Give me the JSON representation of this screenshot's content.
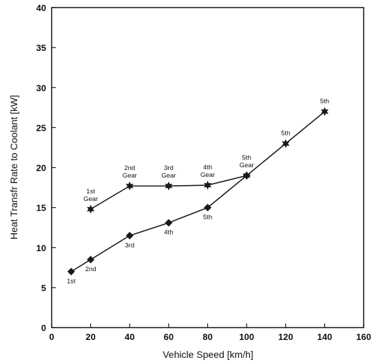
{
  "chart_data": {
    "type": "line",
    "title": "",
    "xlabel": "Vehicle Speed [km/h]",
    "ylabel": "Heat Transfr Rate to Coolant [kW]",
    "xlim": [
      0,
      160
    ],
    "ylim": [
      0,
      40
    ],
    "xticks": [
      "0",
      "20",
      "40",
      "60",
      "80",
      "100",
      "120",
      "140",
      "160"
    ],
    "yticks": [
      "0",
      "5",
      "10",
      "15",
      "20",
      "25",
      "30",
      "35",
      "40"
    ],
    "grid": false,
    "legend": "none",
    "series": [
      {
        "marker": "star",
        "color": "#1a1a1a",
        "points": [
          {
            "x": 20,
            "y": 14.8,
            "label": [
              "1st",
              "Gear"
            ],
            "label_pos": "above"
          },
          {
            "x": 40,
            "y": 17.7,
            "label": [
              "2nd",
              "Gear"
            ],
            "label_pos": "above"
          },
          {
            "x": 60,
            "y": 17.7,
            "label": [
              "3rd",
              "Gear"
            ],
            "label_pos": "above"
          },
          {
            "x": 80,
            "y": 17.8,
            "label": [
              "4th",
              "Gear"
            ],
            "label_pos": "above"
          },
          {
            "x": 100,
            "y": 19.0,
            "label": [
              "5th",
              "Gear"
            ],
            "label_pos": "above"
          },
          {
            "x": 120,
            "y": 23.0,
            "label": [
              "5th"
            ],
            "label_pos": "above"
          },
          {
            "x": 140,
            "y": 27.0,
            "label": [
              "5th"
            ],
            "label_pos": "above"
          }
        ]
      },
      {
        "marker": "diamond",
        "color": "#1a1a1a",
        "points": [
          {
            "x": 10,
            "y": 7.0,
            "label": [
              "1st"
            ],
            "label_pos": "below"
          },
          {
            "x": 20,
            "y": 8.5,
            "label": [
              "2nd"
            ],
            "label_pos": "below"
          },
          {
            "x": 40,
            "y": 11.5,
            "label": [
              "3rd"
            ],
            "label_pos": "below"
          },
          {
            "x": 60,
            "y": 13.1,
            "label": [
              "4th"
            ],
            "label_pos": "below"
          },
          {
            "x": 80,
            "y": 15.0,
            "label": [
              "5th"
            ],
            "label_pos": "below"
          },
          {
            "x": 100,
            "y": 19.0,
            "label": [],
            "label_pos": "below"
          }
        ]
      }
    ]
  }
}
